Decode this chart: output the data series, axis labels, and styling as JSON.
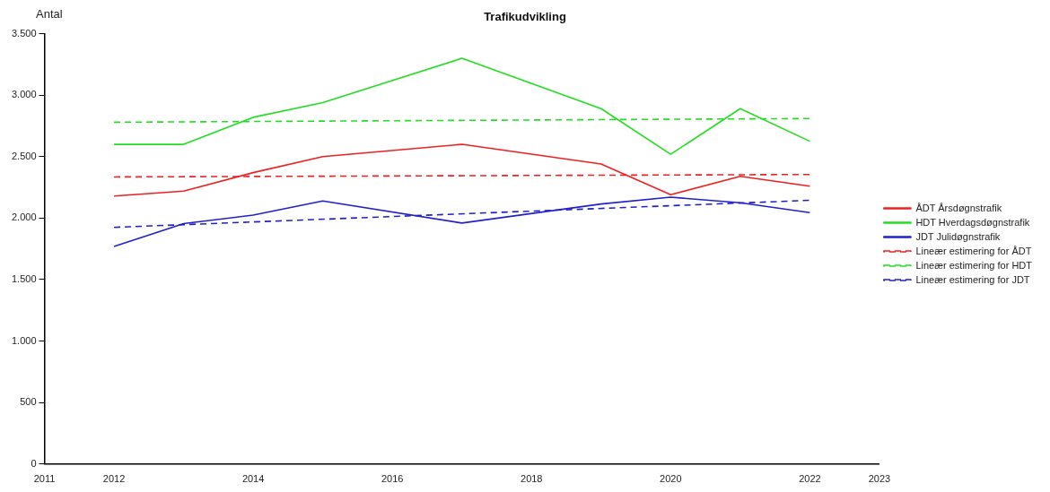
{
  "chart_data": {
    "type": "line",
    "title": "Trafikudvikling",
    "ylabel": "Antal",
    "xlim": [
      2011,
      2023
    ],
    "xticks": [
      2011,
      2012,
      2014,
      2016,
      2018,
      2020,
      2022,
      2023
    ],
    "ylim": [
      0,
      3500
    ],
    "yticks": [
      0,
      {
        "value": 500,
        "label": "500"
      },
      {
        "value": 1000,
        "label": "1.000"
      },
      {
        "value": 1500,
        "label": "1.500"
      },
      {
        "value": 2000,
        "label": "2.000"
      },
      {
        "value": 2500,
        "label": "2.500"
      },
      {
        "value": 3000,
        "label": "3.000"
      },
      {
        "value": 3500,
        "label": "3.500"
      }
    ],
    "grid": false,
    "legend": "right",
    "marker": "none",
    "series": [
      {
        "name": "ÅDT Årsdøgnstrafik",
        "color": "#ee2020",
        "line_style": "solid",
        "x": [
          2012,
          2013,
          2014,
          2015,
          2017,
          2019,
          2020,
          2021,
          2022
        ],
        "values": [
          2180,
          2220,
          2370,
          2500,
          2600,
          2440,
          2190,
          2340,
          2260
        ]
      },
      {
        "name": "HDT Hverdagsdøgnstrafik",
        "color": "#22dd22",
        "line_style": "solid",
        "x": [
          2012,
          2013,
          2014,
          2015,
          2017,
          2019,
          2020,
          2021,
          2022
        ],
        "values": [
          2600,
          2600,
          2820,
          2940,
          3300,
          2890,
          2520,
          2890,
          2625
        ]
      },
      {
        "name": "JDT Julidøgnstrafik",
        "color": "#2020cc",
        "line_style": "solid",
        "x": [
          2012,
          2013,
          2014,
          2015,
          2017,
          2019,
          2020,
          2021,
          2022
        ],
        "values": [
          1770,
          1955,
          2025,
          2140,
          1960,
          2115,
          2170,
          2125,
          2045
        ]
      },
      {
        "name": "Lineær estimering for ÅDT",
        "color": "#ee2020",
        "line_style": "dashed",
        "x": [
          2012,
          2022
        ],
        "values": [
          2335,
          2355
        ]
      },
      {
        "name": "Lineær estimering for HDT",
        "color": "#22dd22",
        "line_style": "dashed",
        "x": [
          2012,
          2022
        ],
        "values": [
          2780,
          2810
        ]
      },
      {
        "name": "Lineær estimering for JDT",
        "color": "#2020cc",
        "line_style": "dashed",
        "x": [
          2012,
          2022
        ],
        "values": [
          1925,
          2145
        ]
      }
    ]
  }
}
